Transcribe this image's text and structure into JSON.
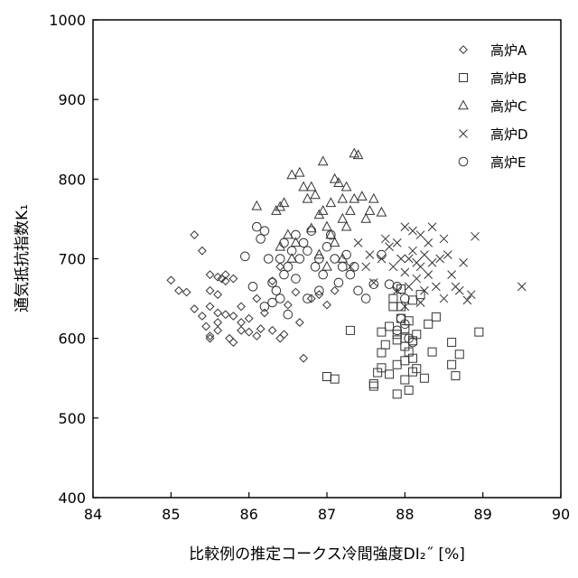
{
  "chart_data": {
    "type": "scatter",
    "title": "",
    "xlabel": "比較例の推定コークス冷間強度DI₂˝ [%]",
    "ylabel": "通気抵抗指数K₁",
    "xlim": [
      84,
      90
    ],
    "ylim": [
      400,
      1000
    ],
    "xticks": [
      84,
      85,
      86,
      87,
      88,
      89,
      90
    ],
    "yticks": [
      400,
      500,
      600,
      700,
      800,
      900,
      1000
    ],
    "grid": false,
    "legend_position": "top-right",
    "series": [
      {
        "name": "高炉A",
        "marker": "diamond",
        "points": [
          [
            85.0,
            673
          ],
          [
            85.1,
            660
          ],
          [
            85.2,
            658
          ],
          [
            85.3,
            730
          ],
          [
            85.4,
            710
          ],
          [
            85.3,
            637
          ],
          [
            85.4,
            628
          ],
          [
            85.5,
            600
          ],
          [
            85.5,
            603
          ],
          [
            85.6,
            610
          ],
          [
            85.5,
            640
          ],
          [
            85.6,
            620
          ],
          [
            85.5,
            660
          ],
          [
            85.6,
            655
          ],
          [
            85.5,
            680
          ],
          [
            85.6,
            677
          ],
          [
            85.65,
            675
          ],
          [
            85.7,
            680
          ],
          [
            85.7,
            672
          ],
          [
            85.8,
            675
          ],
          [
            85.7,
            630
          ],
          [
            85.8,
            628
          ],
          [
            85.75,
            600
          ],
          [
            85.8,
            595
          ],
          [
            85.9,
            610
          ],
          [
            85.9,
            620
          ],
          [
            86.0,
            625
          ],
          [
            86.1,
            603
          ],
          [
            86.15,
            612
          ],
          [
            86.2,
            632
          ],
          [
            86.3,
            610
          ],
          [
            86.4,
            600
          ],
          [
            86.45,
            605
          ],
          [
            86.5,
            642
          ],
          [
            86.6,
            658
          ],
          [
            86.65,
            620
          ],
          [
            86.7,
            575
          ],
          [
            86.8,
            650
          ],
          [
            86.9,
            655
          ],
          [
            87.0,
            642
          ],
          [
            87.1,
            660
          ],
          [
            86.4,
            690
          ],
          [
            86.3,
            672
          ],
          [
            86.1,
            650
          ],
          [
            86.0,
            608
          ],
          [
            85.6,
            632
          ],
          [
            85.45,
            615
          ],
          [
            85.9,
            640
          ]
        ]
      },
      {
        "name": "高炉B",
        "marker": "square",
        "points": [
          [
            87.0,
            552
          ],
          [
            87.1,
            549
          ],
          [
            87.3,
            610
          ],
          [
            87.6,
            540
          ],
          [
            87.6,
            543
          ],
          [
            87.65,
            557
          ],
          [
            87.7,
            563
          ],
          [
            87.7,
            582
          ],
          [
            87.7,
            608
          ],
          [
            87.75,
            592
          ],
          [
            87.8,
            555
          ],
          [
            87.8,
            615
          ],
          [
            87.85,
            650
          ],
          [
            87.85,
            640
          ],
          [
            87.9,
            530
          ],
          [
            87.9,
            567
          ],
          [
            87.9,
            598
          ],
          [
            87.9,
            605
          ],
          [
            87.95,
            625
          ],
          [
            87.95,
            640
          ],
          [
            88.0,
            548
          ],
          [
            88.0,
            572
          ],
          [
            88.0,
            590
          ],
          [
            88.0,
            600
          ],
          [
            88.0,
            612
          ],
          [
            88.05,
            535
          ],
          [
            88.05,
            583
          ],
          [
            88.05,
            622
          ],
          [
            88.1,
            558
          ],
          [
            88.1,
            575
          ],
          [
            88.1,
            597
          ],
          [
            88.15,
            562
          ],
          [
            88.15,
            605
          ],
          [
            88.2,
            655
          ],
          [
            88.25,
            550
          ],
          [
            88.3,
            618
          ],
          [
            88.35,
            583
          ],
          [
            88.4,
            627
          ],
          [
            88.6,
            595
          ],
          [
            88.6,
            567
          ],
          [
            88.65,
            553
          ],
          [
            88.7,
            580
          ],
          [
            88.95,
            608
          ],
          [
            87.95,
            662
          ],
          [
            88.1,
            648
          ]
        ]
      },
      {
        "name": "高炉C",
        "marker": "triangle",
        "points": [
          [
            86.1,
            766
          ],
          [
            86.35,
            760
          ],
          [
            86.4,
            765
          ],
          [
            86.45,
            770
          ],
          [
            86.55,
            805
          ],
          [
            86.65,
            808
          ],
          [
            86.7,
            790
          ],
          [
            86.75,
            775
          ],
          [
            86.8,
            790
          ],
          [
            86.85,
            780
          ],
          [
            86.9,
            755
          ],
          [
            86.95,
            822
          ],
          [
            86.95,
            760
          ],
          [
            87.0,
            740
          ],
          [
            87.05,
            770
          ],
          [
            87.1,
            800
          ],
          [
            87.15,
            795
          ],
          [
            87.2,
            775
          ],
          [
            87.2,
            750
          ],
          [
            87.25,
            790
          ],
          [
            87.3,
            760
          ],
          [
            87.35,
            775
          ],
          [
            87.35,
            832
          ],
          [
            87.4,
            830
          ],
          [
            87.45,
            778
          ],
          [
            87.5,
            750
          ],
          [
            87.55,
            760
          ],
          [
            87.6,
            775
          ],
          [
            87.7,
            758
          ],
          [
            86.5,
            730
          ],
          [
            86.6,
            720
          ],
          [
            86.8,
            738
          ],
          [
            87.05,
            730
          ],
          [
            87.1,
            720
          ],
          [
            87.25,
            740
          ],
          [
            86.4,
            715
          ],
          [
            86.55,
            700
          ],
          [
            86.9,
            705
          ],
          [
            87.0,
            690
          ],
          [
            87.2,
            700
          ]
        ]
      },
      {
        "name": "高炉D",
        "marker": "cross",
        "points": [
          [
            87.3,
            690
          ],
          [
            87.5,
            690
          ],
          [
            87.6,
            670
          ],
          [
            87.7,
            700
          ],
          [
            87.75,
            725
          ],
          [
            87.8,
            715
          ],
          [
            87.85,
            690
          ],
          [
            87.9,
            720
          ],
          [
            87.9,
            660
          ],
          [
            87.95,
            700
          ],
          [
            88.0,
            740
          ],
          [
            88.0,
            683
          ],
          [
            88.05,
            700
          ],
          [
            88.05,
            665
          ],
          [
            88.1,
            735
          ],
          [
            88.1,
            710
          ],
          [
            88.15,
            695
          ],
          [
            88.15,
            675
          ],
          [
            88.2,
            730
          ],
          [
            88.2,
            690
          ],
          [
            88.25,
            705
          ],
          [
            88.25,
            660
          ],
          [
            88.3,
            720
          ],
          [
            88.3,
            680
          ],
          [
            88.35,
            695
          ],
          [
            88.4,
            665
          ],
          [
            88.45,
            700
          ],
          [
            88.5,
            725
          ],
          [
            88.55,
            705
          ],
          [
            88.6,
            680
          ],
          [
            88.65,
            665
          ],
          [
            88.7,
            660
          ],
          [
            88.75,
            695
          ],
          [
            88.8,
            648
          ],
          [
            88.85,
            655
          ],
          [
            88.9,
            728
          ],
          [
            89.5,
            665
          ],
          [
            87.4,
            720
          ],
          [
            87.55,
            705
          ],
          [
            88.0,
            640
          ],
          [
            88.2,
            645
          ],
          [
            88.5,
            650
          ],
          [
            88.35,
            740
          ]
        ]
      },
      {
        "name": "高炉E",
        "marker": "circle",
        "points": [
          [
            85.95,
            703
          ],
          [
            86.05,
            665
          ],
          [
            86.1,
            740
          ],
          [
            86.15,
            725
          ],
          [
            86.2,
            735
          ],
          [
            86.25,
            700
          ],
          [
            86.3,
            670
          ],
          [
            86.35,
            660
          ],
          [
            86.4,
            650
          ],
          [
            86.45,
            680
          ],
          [
            86.5,
            690
          ],
          [
            86.55,
            710
          ],
          [
            86.6,
            730
          ],
          [
            86.65,
            700
          ],
          [
            86.7,
            720
          ],
          [
            86.75,
            710
          ],
          [
            86.8,
            735
          ],
          [
            86.85,
            690
          ],
          [
            86.9,
            700
          ],
          [
            86.95,
            680
          ],
          [
            87.0,
            715
          ],
          [
            87.05,
            730
          ],
          [
            87.1,
            700
          ],
          [
            87.15,
            670
          ],
          [
            87.2,
            690
          ],
          [
            87.25,
            705
          ],
          [
            87.3,
            680
          ],
          [
            87.4,
            660
          ],
          [
            87.5,
            650
          ],
          [
            87.6,
            668
          ],
          [
            87.7,
            705
          ],
          [
            87.8,
            668
          ],
          [
            87.9,
            665
          ],
          [
            87.95,
            625
          ],
          [
            88.0,
            618
          ],
          [
            88.05,
            600
          ],
          [
            88.1,
            595
          ],
          [
            87.9,
            610
          ],
          [
            88.0,
            650
          ],
          [
            86.2,
            640
          ],
          [
            86.3,
            645
          ],
          [
            86.5,
            630
          ],
          [
            86.75,
            650
          ],
          [
            86.9,
            660
          ],
          [
            86.45,
            720
          ],
          [
            86.6,
            675
          ],
          [
            87.35,
            690
          ],
          [
            86.4,
            700
          ]
        ]
      }
    ]
  }
}
